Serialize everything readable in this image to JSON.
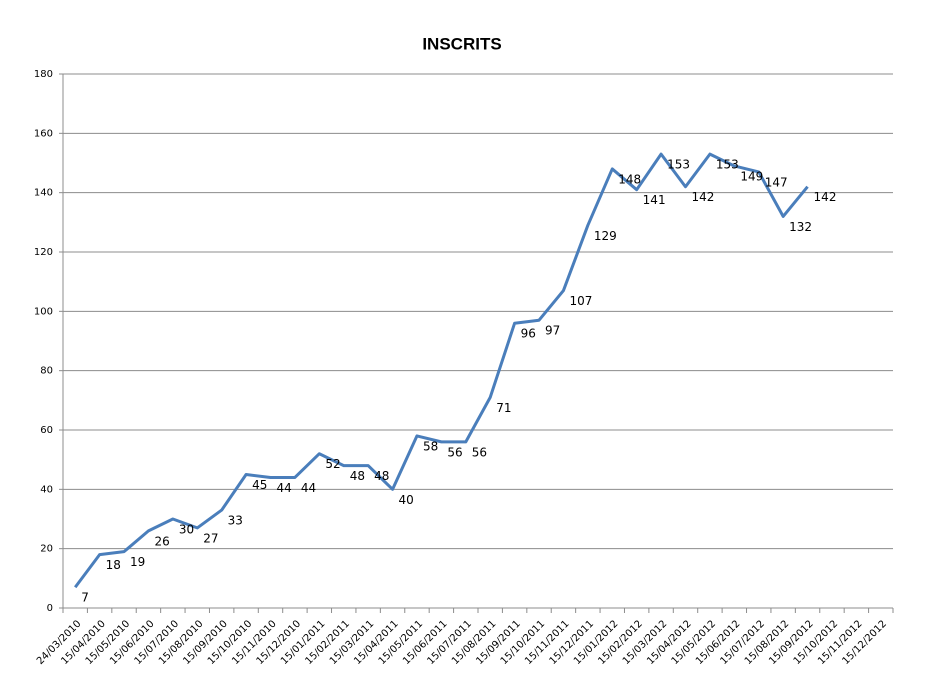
{
  "chart_data": {
    "type": "line",
    "title": "INSCRITS",
    "categories": [
      "24/03/2010",
      "15/04/2010",
      "15/05/2010",
      "15/06/2010",
      "15/07/2010",
      "15/08/2010",
      "15/09/2010",
      "15/10/2010",
      "15/11/2010",
      "15/12/2010",
      "15/01/2011",
      "15/02/2011",
      "15/03/2011",
      "15/04/2011",
      "15/05/2011",
      "15/06/2011",
      "15/07/2011",
      "15/08/2011",
      "15/09/2011",
      "15/10/2011",
      "15/11/2011",
      "15/12/2011",
      "15/01/2012",
      "15/02/2012",
      "15/03/2012",
      "15/04/2012",
      "15/05/2012",
      "15/06/2012",
      "15/07/2012",
      "15/08/2012",
      "15/09/2012",
      "15/10/2012",
      "15/11/2012",
      "15/12/2012"
    ],
    "series": [
      {
        "name": "INSCRITS",
        "color": "#4a7ebb",
        "values": [
          7,
          18,
          19,
          26,
          30,
          27,
          33,
          45,
          44,
          44,
          52,
          48,
          48,
          40,
          58,
          56,
          56,
          71,
          96,
          97,
          107,
          129,
          148,
          141,
          153,
          142,
          153,
          149,
          147,
          132,
          142,
          null,
          null,
          null
        ]
      }
    ],
    "ylim": [
      0,
      180
    ],
    "yticks": [
      0,
      20,
      40,
      60,
      80,
      100,
      120,
      140,
      160,
      180
    ],
    "grid": true
  }
}
